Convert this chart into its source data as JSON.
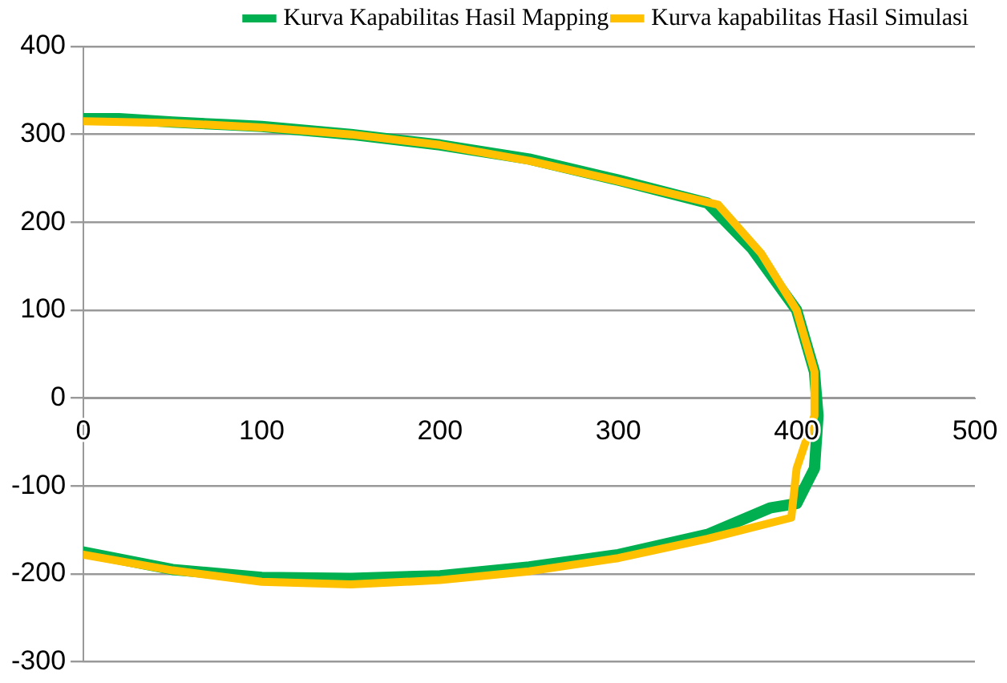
{
  "chart_data": {
    "type": "line",
    "xlim": [
      0,
      500
    ],
    "xticks": [
      0,
      100,
      200,
      300,
      400,
      500
    ],
    "ylim": [
      -300,
      400
    ],
    "yticks": [
      -300,
      -200,
      -100,
      0,
      100,
      200,
      300,
      400
    ],
    "grid": "y",
    "legend": "top right",
    "marker": "none",
    "line_style": "solid",
    "series": [
      {
        "name": "Kurva Kapabilitas Hasil Mapping",
        "color": "#00b050",
        "x": [
          0,
          20,
          50,
          80,
          100,
          150,
          200,
          250,
          300,
          350,
          375,
          400,
          410,
          412,
          410,
          400,
          385,
          350,
          300,
          250,
          200,
          150,
          100,
          50,
          0
        ],
        "values": [
          318,
          318,
          314,
          311,
          309,
          300,
          288,
          272,
          248,
          222,
          170,
          100,
          30,
          -20,
          -80,
          -120,
          -125,
          -155,
          -178,
          -192,
          -202,
          -205,
          -204,
          -195,
          -175
        ]
      },
      {
        "name": "Kurva kapabilitas Hasil Simulasi",
        "color": "#ffc000",
        "x": [
          0,
          50,
          100,
          150,
          200,
          250,
          300,
          356,
          380,
          400,
          410,
          410,
          400,
          397,
          350,
          300,
          250,
          200,
          150,
          100,
          50,
          0
        ],
        "values": [
          315,
          313,
          308,
          300,
          288,
          270,
          247,
          220,
          165,
          100,
          30,
          -20,
          -80,
          -136,
          -160,
          -182,
          -197,
          -207,
          -212,
          -209,
          -196,
          -178
        ]
      }
    ]
  }
}
